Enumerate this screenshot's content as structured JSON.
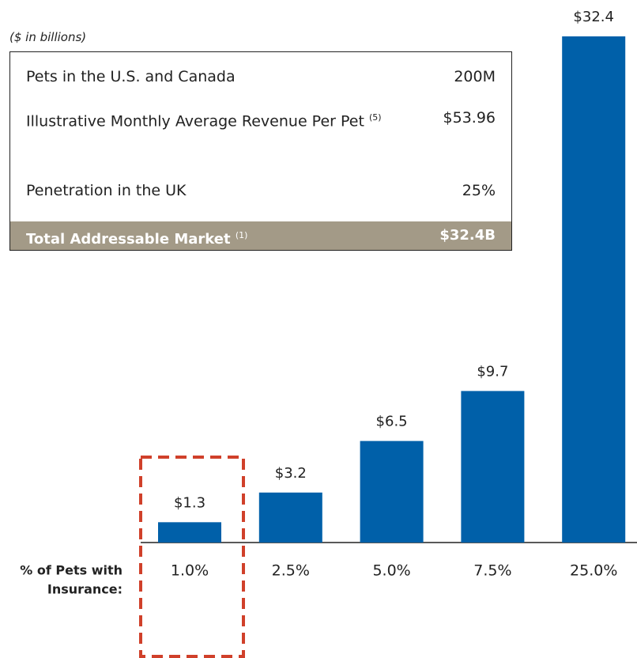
{
  "chart_data": {
    "type": "bar",
    "subtitle": "($ in billions)",
    "x_label": [
      "% of Pets with",
      "Insurance:"
    ],
    "categories": [
      "1.0%",
      "2.5%",
      "5.0%",
      "7.5%",
      "25.0%"
    ],
    "values": [
      1.3,
      3.2,
      6.5,
      9.7,
      32.4
    ],
    "value_labels": [
      "$1.3",
      "$3.2",
      "$6.5",
      "$9.7",
      "$32.4"
    ],
    "color": "#0060a9"
  },
  "table": {
    "rows": [
      {
        "label": "Pets in the U.S. and Canada",
        "value": "200M"
      },
      {
        "label": "Illustrative Monthly Average Revenue Per Pet",
        "footnote": "(5)",
        "value": "$53.96"
      },
      {
        "label": "Penetration in the UK",
        "value": "25%"
      }
    ],
    "total": {
      "label": "Total Addressable Market",
      "footnote": "(1)",
      "value": "$32.4B"
    }
  }
}
